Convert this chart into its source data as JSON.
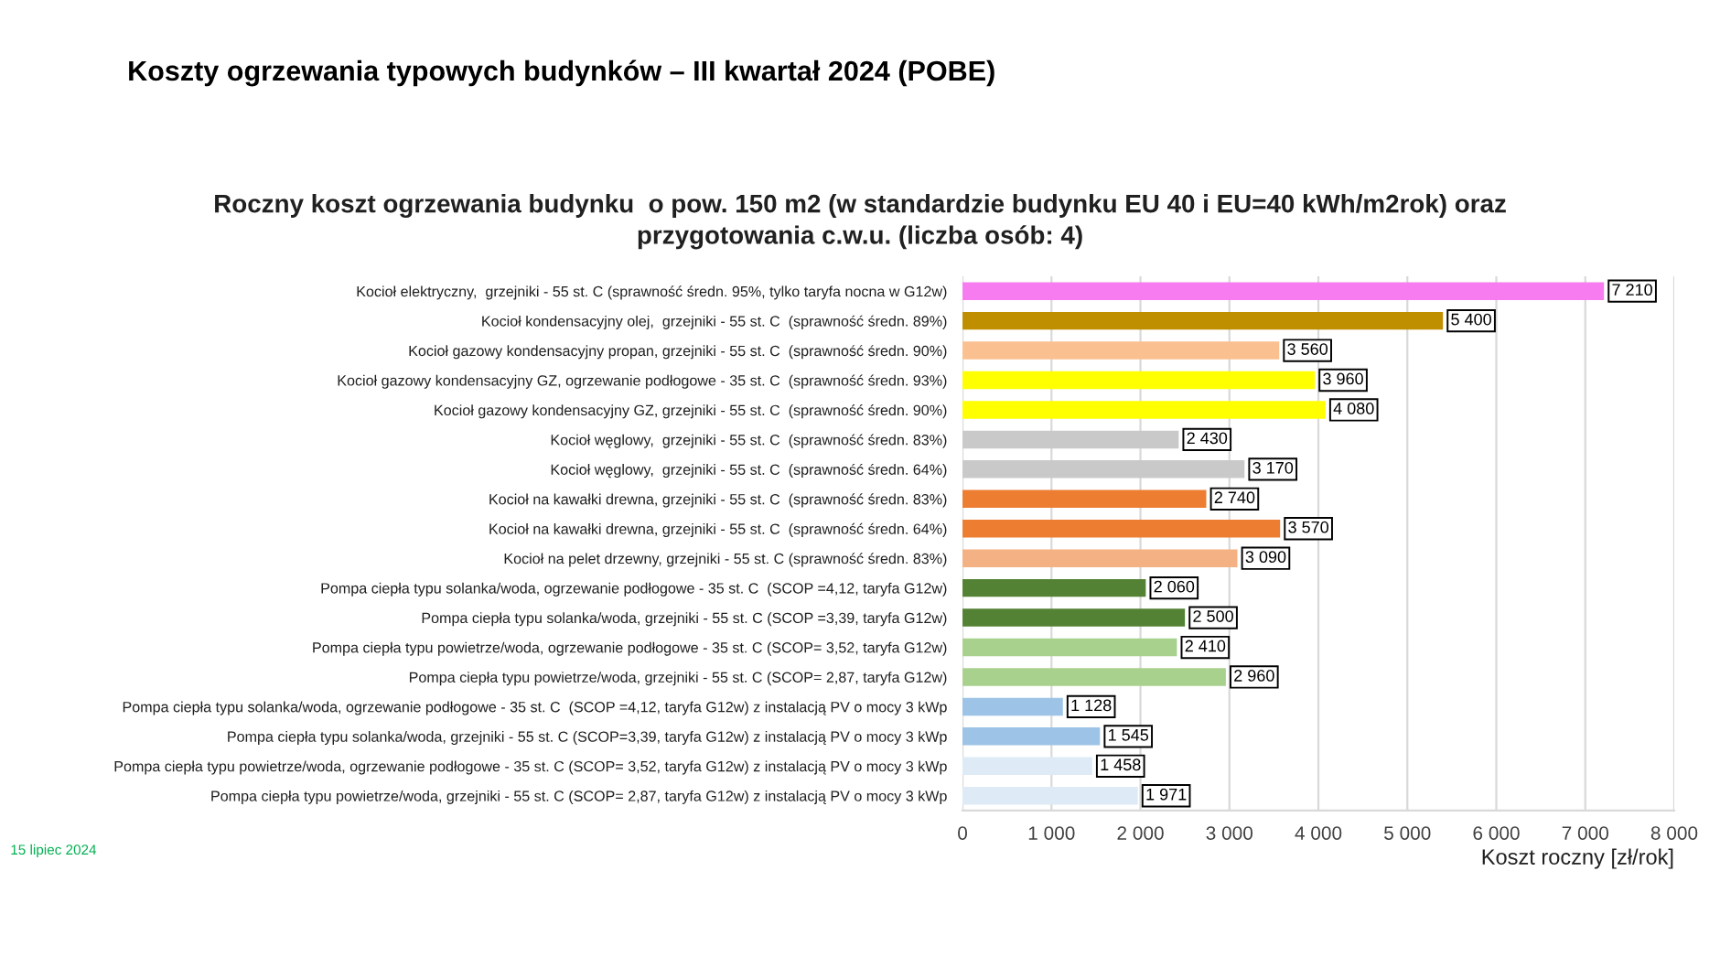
{
  "chart_data": {
    "type": "bar",
    "orientation": "horizontal",
    "title": "Koszty ogrzewania typowych budynków – III kwartał 2024 (POBE)",
    "subtitle": "Roczny koszt ogrzewania budynku  o pow. 150 m2 (w standardzie budynku EU 40 i EU=40 kWh/m2rok) oraz\nprzygotowania c.w.u. (liczba osób: 4)",
    "xlabel": "Koszt roczny [zł/rok]",
    "annotations": [
      "15 lipiec 2024"
    ],
    "categories": [
      "Kocioł elektryczny,  grzejniki - 55 st. C (sprawność średn. 95%, tylko taryfa nocna w G12w)",
      "Kocioł kondensacyjny olej,  grzejniki - 55 st. C  (sprawność średn. 89%)",
      "Kocioł gazowy kondensacyjny propan, grzejniki - 55 st. C  (sprawność średn. 90%)",
      "Kocioł gazowy kondensacyjny GZ, ogrzewanie podłogowe - 35 st. C  (sprawność średn. 93%)",
      "Kocioł gazowy kondensacyjny GZ, grzejniki - 55 st. C  (sprawność średn. 90%)",
      "Kocioł węglowy,  grzejniki - 55 st. C  (sprawność średn. 83%)",
      "Kocioł węglowy,  grzejniki - 55 st. C  (sprawność średn. 64%)",
      "Kocioł na kawałki drewna, grzejniki - 55 st. C  (sprawność średn. 83%)",
      "Kocioł na kawałki drewna, grzejniki - 55 st. C  (sprawność średn. 64%)",
      "Kocioł na pelet drzewny, grzejniki - 55 st. C (sprawność średn. 83%)",
      "Pompa ciepła typu solanka/woda, ogrzewanie podłogowe - 35 st. C  (SCOP =4,12, taryfa G12w)",
      "Pompa ciepła typu solanka/woda, grzejniki - 55 st. C (SCOP =3,39, taryfa G12w)",
      "Pompa ciepła typu powietrze/woda, ogrzewanie podłogowe - 35 st. C (SCOP= 3,52, taryfa G12w)",
      "Pompa ciepła typu powietrze/woda, grzejniki - 55 st. C (SCOP= 2,87, taryfa G12w)",
      "Pompa ciepła typu solanka/woda, ogrzewanie podłogowe - 35 st. C  (SCOP =4,12, taryfa G12w) z instalacją PV o mocy 3 kWp",
      "Pompa ciepła typu solanka/woda, grzejniki - 55 st. C (SCOP=3,39, taryfa G12w) z instalacją PV o mocy 3 kWp",
      "Pompa ciepła typu powietrze/woda, ogrzewanie podłogowe - 35 st. C (SCOP= 3,52, taryfa G12w) z instalacją PV o mocy 3 kWp",
      "Pompa ciepła typu powietrze/woda, grzejniki - 55 st. C (SCOP= 2,87, taryfa G12w) z instalacją PV o mocy 3 kWp"
    ],
    "values": [
      7210,
      5400,
      3560,
      3960,
      4080,
      2430,
      3170,
      2740,
      3570,
      3090,
      2060,
      2500,
      2410,
      2960,
      1128,
      1545,
      1458,
      1971
    ],
    "value_labels": [
      "7 210",
      "5 400",
      "3 560",
      "3 960",
      "4 080",
      "2 430",
      "3 170",
      "2 740",
      "3 570",
      "3 090",
      "2 060",
      "2 500",
      "2 410",
      "2 960",
      "1 128",
      "1 545",
      "1 458",
      "1 971"
    ],
    "colors": [
      "#f77cf0",
      "#bf8f00",
      "#fac090",
      "#ffff00",
      "#ffff00",
      "#c9c9c9",
      "#c9c9c9",
      "#ed7d31",
      "#ed7d31",
      "#f4b183",
      "#548235",
      "#548235",
      "#a9d18e",
      "#a9d18e",
      "#9dc3e6",
      "#9dc3e6",
      "#deebf7",
      "#deebf7"
    ],
    "xlim": [
      0,
      8000
    ],
    "xticks": [
      0,
      {
        "value": 1000,
        "label": "1 000"
      },
      {
        "value": 2000,
        "label": "2 000"
      },
      {
        "value": 3000,
        "label": "3 000"
      },
      {
        "value": 4000,
        "label": "4 000"
      },
      {
        "value": 5000,
        "label": "5 000"
      },
      {
        "value": 6000,
        "label": "6 000"
      },
      {
        "value": 7000,
        "label": "7 000"
      },
      {
        "value": 8000,
        "label": "8 000"
      }
    ],
    "grid": "x"
  }
}
